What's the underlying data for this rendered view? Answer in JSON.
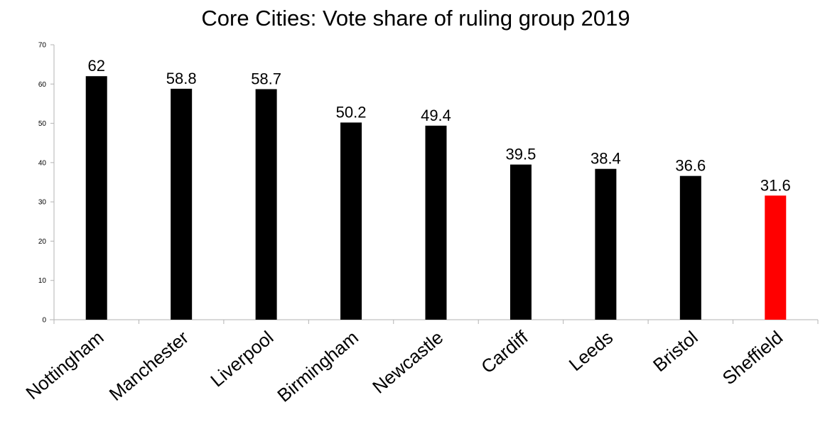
{
  "chart_data": {
    "type": "bar",
    "title": "Core Cities: Vote share of ruling group 2019",
    "xlabel": "",
    "ylabel": "",
    "categories": [
      "Nottingham",
      "Manchester",
      "Liverpool",
      "Birmingham",
      "Newcastle",
      "Cardiff",
      "Leeds",
      "Bristol",
      "Sheffield"
    ],
    "values": [
      62,
      58.8,
      58.7,
      50.2,
      49.4,
      39.5,
      38.4,
      36.6,
      31.6
    ],
    "data_labels": [
      "62",
      "58.8",
      "58.7",
      "50.2",
      "49.4",
      "39.5",
      "38.4",
      "36.6",
      "31.6"
    ],
    "ylim": [
      0,
      70
    ],
    "y_ticks": [
      0,
      10,
      20,
      30,
      40,
      50,
      60,
      70
    ],
    "grid": false,
    "legend": "none",
    "colors": {
      "default_bar": "#000000",
      "highlight_bar": "#ff0000",
      "axis": "#b3b3b3"
    },
    "highlight_categories": [
      "Sheffield"
    ]
  }
}
